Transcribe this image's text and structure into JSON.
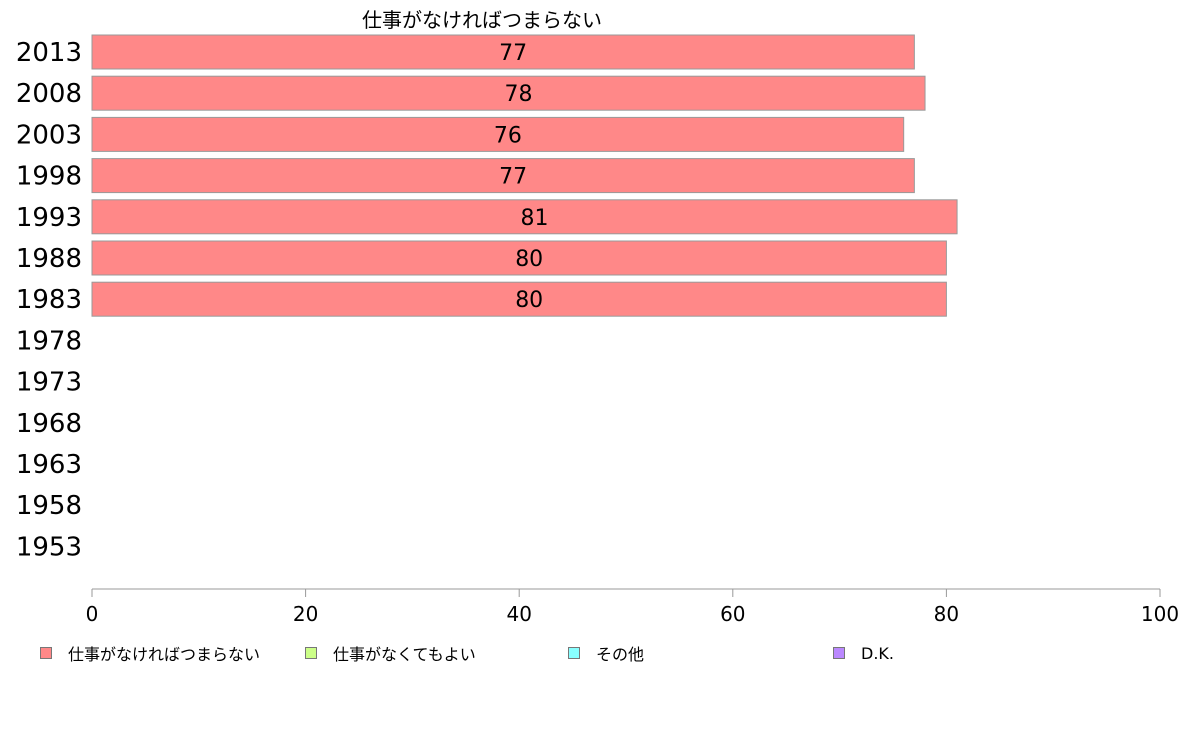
{
  "colors": {
    "series": [
      "#ff8888",
      "#ccff88",
      "#88ffff",
      "#bb88ff"
    ],
    "bar_stroke": "#999999",
    "axis": "#999999"
  },
  "chart_data": {
    "type": "bar",
    "orientation": "horizontal",
    "stacked": true,
    "title": "仕事がなければつまらない",
    "xlabel": "",
    "ylabel": "",
    "xlim": [
      0,
      100
    ],
    "xticks": [
      0,
      20,
      40,
      60,
      80,
      100
    ],
    "grid": false,
    "legend_position": "bottom",
    "categories": [
      "2013",
      "2008",
      "2003",
      "1998",
      "1993",
      "1988",
      "1983",
      "1978",
      "1973",
      "1968",
      "1963",
      "1958",
      "1953"
    ],
    "series": [
      {
        "name": "仕事がなければつまらない",
        "values": [
          77,
          78,
          76,
          77,
          81,
          80,
          80,
          null,
          null,
          null,
          null,
          null,
          null
        ]
      },
      {
        "name": "仕事がなくてもよい",
        "values": [
          null,
          null,
          null,
          null,
          null,
          null,
          null,
          null,
          null,
          null,
          null,
          null,
          null
        ]
      },
      {
        "name": "その他",
        "values": [
          null,
          null,
          null,
          null,
          null,
          null,
          null,
          null,
          null,
          null,
          null,
          null,
          null
        ]
      },
      {
        "name": "D.K.",
        "values": [
          null,
          null,
          null,
          null,
          null,
          null,
          null,
          null,
          null,
          null,
          null,
          null,
          null
        ]
      }
    ],
    "data_labels": [
      "77",
      "78",
      "76",
      "77",
      "81",
      "80",
      "80",
      "",
      "",
      "",
      "",
      "",
      ""
    ]
  }
}
